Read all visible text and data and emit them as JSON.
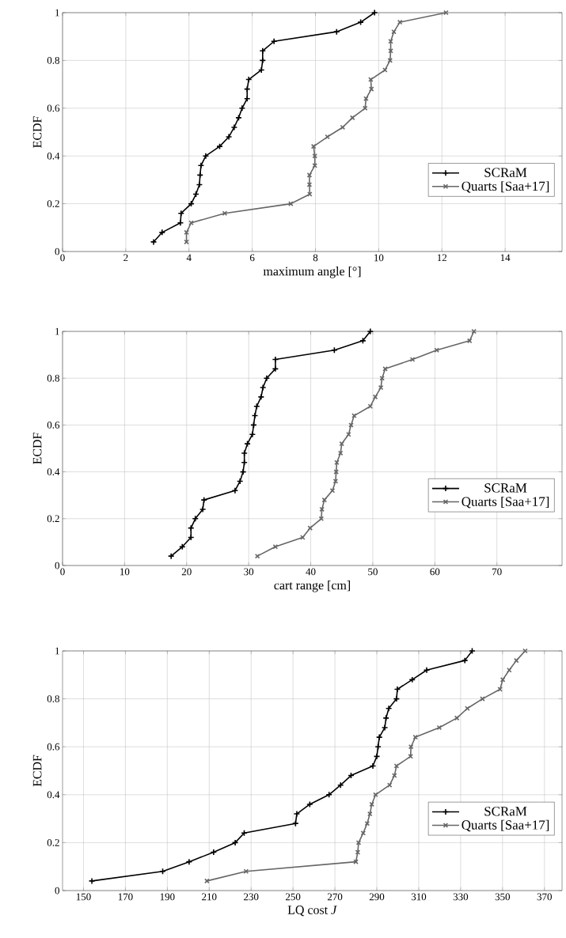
{
  "chart_data": [
    {
      "type": "line",
      "xlabel": "maximum angle [°]",
      "ylabel": "ECDF",
      "xlim": [
        0,
        15.8
      ],
      "ylim": [
        0,
        1
      ],
      "xticks": [
        0,
        2,
        4,
        6,
        8,
        10,
        12,
        14
      ],
      "yticks": [
        0,
        0.2,
        0.4,
        0.6,
        0.8,
        1
      ],
      "grid": true,
      "legend": "right",
      "line_style": "solid",
      "series": [
        {
          "name": "SCRaM",
          "color": "#000000",
          "marker": "plus",
          "x": [
            2.88,
            3.15,
            3.73,
            3.75,
            4.07,
            4.22,
            4.33,
            4.35,
            4.38,
            4.53,
            4.97,
            5.26,
            5.43,
            5.57,
            5.68,
            5.84,
            5.84,
            5.89,
            6.29,
            6.33,
            6.33,
            6.69,
            8.67,
            9.43,
            9.87
          ],
          "values": [
            0.04,
            0.08,
            0.12,
            0.16,
            0.2,
            0.24,
            0.28,
            0.32,
            0.36,
            0.4,
            0.44,
            0.48,
            0.52,
            0.56,
            0.6,
            0.64,
            0.68,
            0.72,
            0.76,
            0.8,
            0.84,
            0.88,
            0.92,
            0.96,
            1
          ]
        },
        {
          "name": "Quarts [Saa+17]",
          "color": "#666666",
          "marker": "cross",
          "x": [
            3.92,
            3.92,
            4.07,
            5.13,
            7.22,
            7.82,
            7.81,
            7.81,
            7.98,
            7.98,
            7.94,
            8.38,
            8.86,
            9.17,
            9.57,
            9.6,
            9.77,
            9.75,
            10.2,
            10.36,
            10.38,
            10.38,
            10.48,
            10.67,
            12.13
          ],
          "values": [
            0.04,
            0.08,
            0.12,
            0.16,
            0.2,
            0.24,
            0.28,
            0.32,
            0.36,
            0.4,
            0.44,
            0.48,
            0.52,
            0.56,
            0.6,
            0.64,
            0.68,
            0.72,
            0.76,
            0.8,
            0.84,
            0.88,
            0.92,
            0.96,
            1
          ]
        }
      ]
    },
    {
      "type": "line",
      "xlabel": "cart range [cm]",
      "ylabel": "ECDF",
      "xlim": [
        0,
        80.5
      ],
      "ylim": [
        0,
        1
      ],
      "xticks": [
        0,
        10,
        20,
        30,
        40,
        50,
        60,
        70
      ],
      "yticks": [
        0,
        0.2,
        0.4,
        0.6,
        0.8,
        1
      ],
      "grid": true,
      "legend": "right",
      "line_style": "solid",
      "series": [
        {
          "name": "SCRaM",
          "color": "#000000",
          "marker": "plus",
          "x": [
            17.5,
            19.3,
            20.7,
            20.7,
            21.4,
            22.6,
            22.8,
            27.8,
            28.6,
            29.1,
            29.3,
            29.3,
            29.8,
            30.6,
            30.8,
            31.0,
            31.3,
            32.0,
            32.3,
            32.9,
            34.3,
            34.3,
            43.8,
            48.4,
            49.6
          ],
          "values": [
            0.04,
            0.08,
            0.12,
            0.16,
            0.2,
            0.24,
            0.28,
            0.32,
            0.36,
            0.4,
            0.44,
            0.48,
            0.52,
            0.56,
            0.6,
            0.64,
            0.68,
            0.72,
            0.76,
            0.8,
            0.84,
            0.88,
            0.92,
            0.96,
            1
          ]
        },
        {
          "name": "Quarts [Saa+17]",
          "color": "#666666",
          "marker": "cross",
          "x": [
            31.4,
            34.3,
            38.7,
            39.9,
            41.7,
            41.8,
            42.2,
            43.5,
            44.0,
            44.1,
            44.2,
            44.8,
            45.0,
            46.1,
            46.5,
            47.0,
            49.6,
            50.4,
            51.3,
            51.5,
            52.0,
            56.4,
            60.3,
            65.6,
            66.3
          ],
          "values": [
            0.04,
            0.08,
            0.12,
            0.16,
            0.2,
            0.24,
            0.28,
            0.32,
            0.36,
            0.4,
            0.44,
            0.48,
            0.52,
            0.56,
            0.6,
            0.64,
            0.68,
            0.72,
            0.76,
            0.8,
            0.84,
            0.88,
            0.92,
            0.96,
            1
          ]
        }
      ]
    },
    {
      "type": "line",
      "xlabel": "LQ cost *J*",
      "ylabel": "ECDF",
      "xlim": [
        140,
        378.4
      ],
      "ylim": [
        0,
        1
      ],
      "xticks": [
        150,
        170,
        190,
        210,
        230,
        250,
        270,
        290,
        310,
        330,
        350,
        370
      ],
      "yticks": [
        0,
        0.2,
        0.4,
        0.6,
        0.8,
        1
      ],
      "grid": true,
      "legend": "right",
      "line_style": "solid",
      "series": [
        {
          "name": "SCRaM",
          "color": "#000000",
          "marker": "plus",
          "x": [
            154.0,
            187.8,
            200.4,
            212.1,
            222.4,
            226.7,
            251.2,
            251.8,
            258.0,
            267.2,
            272.7,
            277.7,
            288.1,
            290.0,
            290.6,
            291.2,
            293.8,
            294.4,
            295.7,
            299.4,
            299.8,
            306.9,
            313.8,
            332.0,
            335.5
          ],
          "values": [
            0.04,
            0.08,
            0.12,
            0.16,
            0.2,
            0.24,
            0.28,
            0.32,
            0.36,
            0.4,
            0.44,
            0.48,
            0.52,
            0.56,
            0.6,
            0.64,
            0.68,
            0.72,
            0.76,
            0.8,
            0.84,
            0.88,
            0.92,
            0.96,
            1
          ]
        },
        {
          "name": "Quarts [Saa+17]",
          "color": "#666666",
          "marker": "cross",
          "x": [
            208.9,
            227.6,
            280.0,
            280.9,
            281.3,
            283.5,
            285.4,
            286.7,
            287.6,
            289.4,
            296.1,
            298.4,
            299.4,
            306.1,
            306.3,
            308.4,
            319.8,
            328.2,
            333.2,
            340.4,
            348.8,
            350.1,
            353.2,
            356.6,
            360.8
          ],
          "values": [
            0.04,
            0.08,
            0.12,
            0.16,
            0.2,
            0.24,
            0.28,
            0.32,
            0.36,
            0.4,
            0.44,
            0.48,
            0.52,
            0.56,
            0.6,
            0.64,
            0.68,
            0.72,
            0.76,
            0.8,
            0.84,
            0.88,
            0.92,
            0.96,
            1
          ]
        }
      ]
    }
  ]
}
